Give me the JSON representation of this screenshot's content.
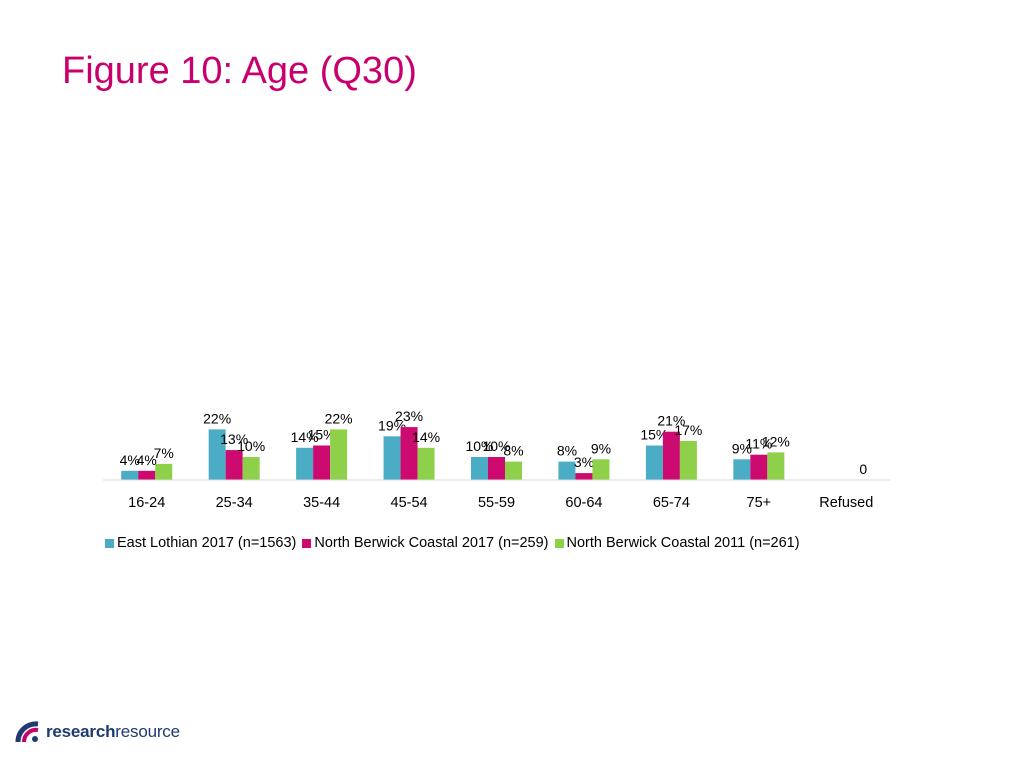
{
  "title": "Figure 10: Age (Q30)",
  "logo": {
    "brand_bold": "research",
    "brand_light": "resource",
    "mark": "logo-mark"
  },
  "colors": {
    "title": "#c8006e",
    "series": [
      "#4bacc6",
      "#cc0a6f",
      "#8ed04a"
    ]
  },
  "chart_data": {
    "type": "bar",
    "categories": [
      "16-24",
      "25-34",
      "35-44",
      "45-54",
      "55-59",
      "60-64",
      "65-74",
      "75+",
      "Refused"
    ],
    "series": [
      {
        "name": "East Lothian 2017 (n=1563)",
        "values": [
          4,
          22,
          14,
          19,
          10,
          8,
          15,
          9,
          null
        ],
        "labels": [
          "4%",
          "22%",
          "14%",
          "19%",
          "10%",
          "8%",
          "15%",
          "9%",
          ""
        ]
      },
      {
        "name": "North Berwick Coastal 2017 (n=259)",
        "values": [
          4,
          13,
          15,
          23,
          10,
          3,
          21,
          11,
          null
        ],
        "labels": [
          "4%",
          "13%",
          "15%",
          "23%",
          "10%",
          "3%",
          "21%",
          "11%",
          ""
        ]
      },
      {
        "name": "North Berwick Coastal 2011 (n=261)",
        "values": [
          7,
          10,
          22,
          14,
          8,
          9,
          17,
          12,
          0
        ],
        "labels": [
          "7%",
          "10%",
          "22%",
          "14%",
          "8%",
          "9%",
          "17%",
          "12%",
          "0"
        ]
      }
    ],
    "legend_position": "bottom",
    "grid": false
  }
}
